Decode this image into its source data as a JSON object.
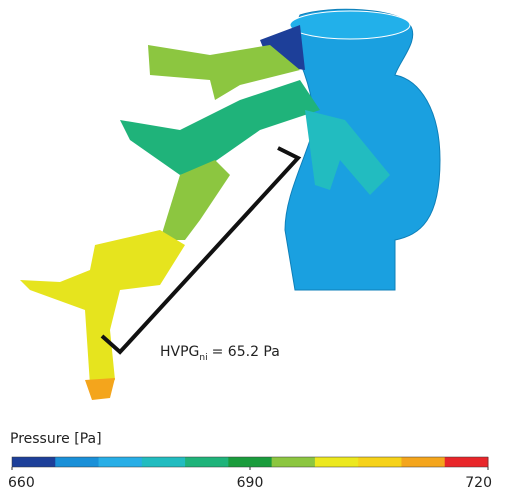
{
  "annotation": {
    "text": "HVPG",
    "subscript": "ni",
    "value": "= 65.2 Pa"
  },
  "colorbar": {
    "title": "Pressure [Pa]",
    "range": [
      660,
      720
    ],
    "ticks": [
      660,
      690,
      720
    ],
    "colors": [
      "#1d3f99",
      "#1a90d8",
      "#28aee6",
      "#22bcc0",
      "#1fb37a",
      "#1a9c3c",
      "#8cc640",
      "#ece81e",
      "#f6d21a",
      "#f4a51c",
      "#e8262a"
    ]
  }
}
